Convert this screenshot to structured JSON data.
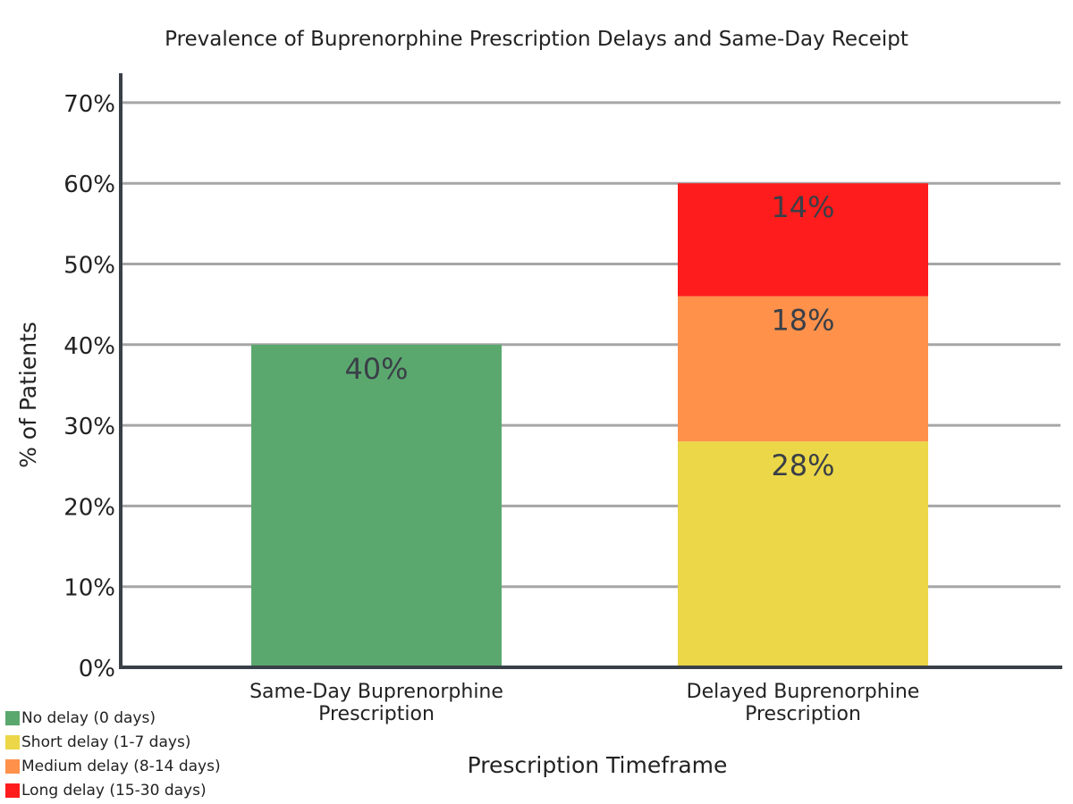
{
  "chart_data": {
    "type": "bar",
    "stacked": true,
    "title": "Prevalence of Buprenorphine Prescription Delays and Same-Day Receipt",
    "xlabel": "Prescription Timeframe",
    "ylabel": "% of Patients",
    "ylim": [
      0,
      70
    ],
    "yticks": [
      "0%",
      "10%",
      "20%",
      "30%",
      "40%",
      "50%",
      "60%",
      "70%"
    ],
    "grid": true,
    "legend_position": "bottom-left",
    "categories": [
      [
        "Same-Day Buprenorphine",
        "Prescription"
      ],
      [
        "Delayed Buprenorphine",
        "Prescription"
      ]
    ],
    "series": [
      {
        "name": "No delay (0 days)",
        "color": "#5ba86e",
        "values": [
          40,
          0
        ],
        "labels": [
          "40%",
          ""
        ]
      },
      {
        "name": "Short delay (1-7 days)",
        "color": "#ecd748",
        "values": [
          0,
          28
        ],
        "labels": [
          "",
          "28%"
        ]
      },
      {
        "name": "Medium delay (8-14 days)",
        "color": "#ff914b",
        "values": [
          0,
          18
        ],
        "labels": [
          "",
          "18%"
        ]
      },
      {
        "name": "Long delay (15-30 days)",
        "color": "#ff1c1c",
        "values": [
          0,
          14
        ],
        "labels": [
          "",
          "14%"
        ]
      }
    ]
  }
}
